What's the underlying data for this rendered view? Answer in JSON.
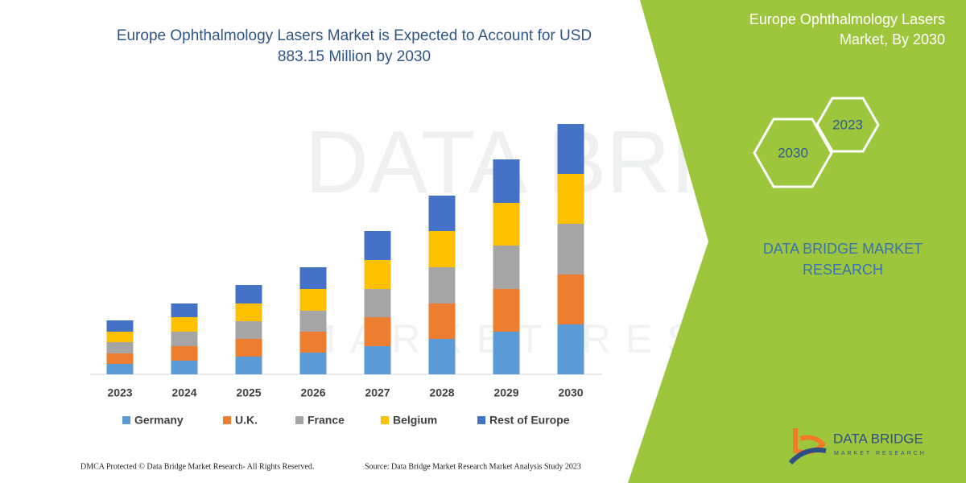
{
  "chart_data": {
    "type": "stacked-bar",
    "title": "Europe Ophthalmology Lasers Market is Expected to Account for USD 883.15 Million by 2030",
    "categories": [
      "2023",
      "2024",
      "2025",
      "2026",
      "2027",
      "2028",
      "2029",
      "2030"
    ],
    "series": [
      {
        "name": "Germany",
        "color": "#5b9bd5",
        "values": [
          13,
          17,
          22,
          27,
          35,
          44,
          53,
          62
        ]
      },
      {
        "name": "U.K.",
        "color": "#ed7d31",
        "values": [
          13,
          18,
          22,
          26,
          36,
          44,
          53,
          62
        ]
      },
      {
        "name": "France",
        "color": "#a5a5a5",
        "values": [
          14,
          18,
          22,
          26,
          35,
          45,
          54,
          63
        ]
      },
      {
        "name": "Belgium",
        "color": "#ffc000",
        "values": [
          13,
          18,
          22,
          27,
          36,
          45,
          53,
          62
        ]
      },
      {
        "name": "Rest of Europe",
        "color": "#4472c4",
        "values": [
          14,
          17,
          23,
          27,
          36,
          44,
          54,
          62
        ]
      }
    ]
  },
  "panel": {
    "title": "Europe Ophthalmology Lasers Market, By 2030",
    "hex_large": "2030",
    "hex_small": "2023",
    "brand": "DATA BRIDGE MARKET RESEARCH"
  },
  "watermark": {
    "line1": "DATA BRIDGE",
    "line2": "MARKET RESEARCH"
  },
  "logo": {
    "name": "DATA BRIDGE",
    "tagline": "MARKET RESEARCH"
  },
  "footer": {
    "left": "DMCA Protected © Data Bridge Market Research- All Rights Reserved.",
    "right": "Source: Data Bridge Market Research Market Analysis Study 2023"
  }
}
